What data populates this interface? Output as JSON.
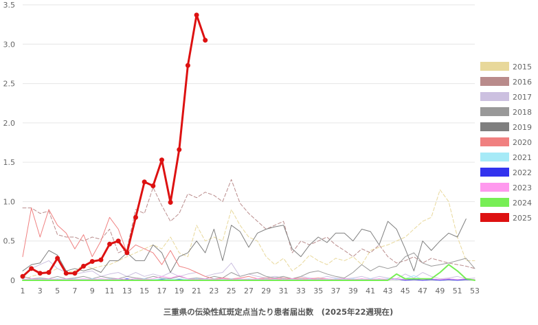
{
  "chart_data": {
    "type": "line",
    "title": "",
    "xlabel": "三重県の伝染性紅斑定点当たり患者届出数　(2025年22週現在)",
    "ylabel": "",
    "ylim": [
      0,
      3.5
    ],
    "xlim": [
      1,
      53
    ],
    "y_ticks": [
      "0",
      "0.5",
      "1.0",
      "1.5",
      "2.0",
      "2.5",
      "3.0",
      "3.5"
    ],
    "x_ticks": [
      "1",
      "3",
      "5",
      "7",
      "9",
      "11",
      "13",
      "15",
      "17",
      "19",
      "21",
      "23",
      "25",
      "27",
      "29",
      "31",
      "33",
      "35",
      "37",
      "39",
      "41",
      "43",
      "45",
      "47",
      "49",
      "51",
      "53"
    ],
    "grid": true,
    "legend_position": "right",
    "series": [
      {
        "name": "2015",
        "color": "#e8d89a",
        "dash": true,
        "width": 1,
        "values": [
          0,
          0.05,
          0.08,
          0.1,
          0.15,
          0.1,
          0.12,
          0.2,
          0.15,
          0.18,
          0.2,
          0.25,
          0.3,
          0.35,
          0.4,
          0.45,
          0.4,
          0.55,
          0.35,
          0.3,
          0.7,
          0.5,
          0.55,
          0.5,
          0.9,
          0.7,
          0.55,
          0.5,
          0.3,
          0.2,
          0.28,
          0.12,
          0.2,
          0.32,
          0.25,
          0.2,
          0.28,
          0.25,
          0.3,
          0.2,
          0.38,
          0.42,
          0.45,
          0.5,
          0.55,
          0.65,
          0.75,
          0.8,
          1.15,
          1.0,
          0.55,
          0.25,
          0.25
        ]
      },
      {
        "name": "2016",
        "color": "#b98b8b",
        "dash": true,
        "width": 1,
        "values": [
          0.92,
          0.92,
          0.85,
          0.88,
          0.58,
          0.55,
          0.55,
          0.5,
          0.55,
          0.52,
          0.65,
          0.35,
          0.4,
          0.9,
          0.85,
          1.18,
          0.95,
          0.75,
          0.85,
          1.1,
          1.05,
          1.12,
          1.08,
          1.0,
          1.28,
          0.98,
          0.85,
          0.75,
          0.65,
          0.7,
          0.75,
          0.35,
          0.5,
          0.45,
          0.5,
          0.55,
          0.45,
          0.38,
          0.3,
          0.4,
          0.35,
          0.45,
          0.3,
          0.22,
          0.25,
          0.3,
          0.22,
          0.28,
          0.25,
          0.22,
          0.2,
          0.18,
          0.15
        ]
      },
      {
        "name": "2017",
        "color": "#ccc0e0",
        "dash": false,
        "width": 1,
        "values": [
          0.05,
          0.15,
          0.2,
          0.25,
          0.15,
          0.1,
          0.08,
          0.1,
          0.12,
          0.05,
          0.08,
          0.1,
          0.05,
          0.1,
          0.05,
          0.08,
          0.05,
          0.1,
          0.05,
          0.08,
          0.1,
          0.05,
          0.08,
          0.1,
          0.22,
          0.05,
          0.08,
          0.05,
          0.03,
          0.05,
          0.03,
          0.02,
          0.05,
          0.03,
          0.02,
          0.05,
          0.03,
          0.02,
          0.03,
          0.05,
          0.02,
          0.05,
          0.03,
          0.02,
          0.08,
          0.03,
          0.1,
          0.05,
          0.02,
          0.03,
          0.05,
          0.02,
          0.03
        ]
      },
      {
        "name": "2018",
        "color": "#999999",
        "dash": false,
        "width": 1,
        "values": [
          0.05,
          0.02,
          0.03,
          0.02,
          0.05,
          0.02,
          0.03,
          0.05,
          0.02,
          0.05,
          0.03,
          0.02,
          0.05,
          0.03,
          0.02,
          0.05,
          0.03,
          0.02,
          0.05,
          0.02,
          0.03,
          0.02,
          0.05,
          0.03,
          0.1,
          0.05,
          0.08,
          0.1,
          0.05,
          0.03,
          0.05,
          0.02,
          0.05,
          0.1,
          0.12,
          0.08,
          0.05,
          0.03,
          0.1,
          0.2,
          0.12,
          0.18,
          0.15,
          0.18,
          0.3,
          0.35,
          0.22,
          0.18,
          0.2,
          0.22,
          0.25,
          0.28,
          0.15
        ]
      },
      {
        "name": "2019",
        "color": "#7f7f7f",
        "dash": false,
        "width": 1,
        "values": [
          0.12,
          0.2,
          0.22,
          0.38,
          0.32,
          0.12,
          0.15,
          0.12,
          0.15,
          0.1,
          0.25,
          0.25,
          0.35,
          0.25,
          0.25,
          0.45,
          0.35,
          0.1,
          0.3,
          0.35,
          0.5,
          0.35,
          0.65,
          0.25,
          0.7,
          0.62,
          0.42,
          0.6,
          0.65,
          0.68,
          0.7,
          0.4,
          0.3,
          0.45,
          0.55,
          0.48,
          0.6,
          0.6,
          0.5,
          0.65,
          0.62,
          0.45,
          0.75,
          0.65,
          0.4,
          0.12,
          0.5,
          0.38,
          0.5,
          0.6,
          0.55,
          0.78,
          null
        ]
      },
      {
        "name": "2020",
        "color": "#f08080",
        "dash": false,
        "width": 1,
        "values": [
          0.3,
          0.92,
          0.55,
          0.9,
          0.7,
          0.6,
          0.4,
          0.58,
          0.3,
          0.5,
          0.8,
          0.65,
          0.35,
          0.45,
          0.4,
          0.35,
          0.2,
          0.38,
          0.18,
          0.15,
          0.1,
          0.05,
          0.02,
          0.03,
          0.02,
          0.03,
          0.05,
          0.02,
          0.03,
          0.02,
          0.03,
          0.02,
          0.03,
          0.02,
          0.03,
          0.02,
          0.01,
          0.02,
          0.01,
          0.02,
          0.01,
          0.02,
          0.01,
          0.02,
          0.01,
          0.02,
          0.01,
          0.02,
          0.01,
          0.02,
          0.01,
          0.01,
          0.01
        ]
      },
      {
        "name": "2021",
        "color": "#a6eaf7",
        "dash": false,
        "width": 1,
        "values": [
          0.02,
          0.01,
          0.02,
          0.01,
          0.02,
          0.01,
          0.02,
          0.01,
          0.02,
          0.01,
          0.02,
          0.01,
          0.02,
          0.01,
          0.02,
          0.01,
          0.02,
          0.01,
          0.02,
          0.01,
          0.02,
          0.01,
          0.02,
          0.01,
          0.02,
          0.01,
          0.02,
          0.01,
          0.02,
          0.01,
          0.02,
          0.01,
          0.02,
          0.01,
          0.02,
          0.01,
          0.02,
          0.01,
          0.02,
          0.01,
          0.02,
          0.01,
          0.02,
          0.01,
          0.02,
          0.06,
          0.01,
          0.02,
          0.01,
          0.02,
          0.01,
          0.02,
          0.01
        ]
      },
      {
        "name": "2022",
        "color": "#3333ee",
        "dash": false,
        "width": 1,
        "values": [
          0.01,
          0.0,
          0.01,
          0.0,
          0.01,
          0.0,
          0.01,
          0.0,
          0.01,
          0.0,
          0.01,
          0.0,
          0.02,
          0.0,
          0.01,
          0.0,
          0.01,
          0.0,
          0.01,
          0.0,
          0.01,
          0.0,
          0.01,
          0.0,
          0.01,
          0.0,
          0.01,
          0.0,
          0.01,
          0.0,
          0.01,
          0.0,
          0.01,
          0.0,
          0.01,
          0.0,
          0.01,
          0.0,
          0.01,
          0.0,
          0.01,
          0.0,
          0.01,
          0.02,
          0.0,
          0.01,
          0.0,
          0.01,
          0.0,
          0.01,
          0.0,
          0.01,
          0.0
        ]
      },
      {
        "name": "2023",
        "color": "#ff99ee",
        "dash": false,
        "width": 1,
        "values": [
          0.01,
          0.02,
          0.01,
          0.02,
          0.01,
          0.02,
          0.01,
          0.02,
          0.01,
          0.02,
          0.01,
          0.02,
          0.01,
          0.02,
          0.01,
          0.02,
          0.05,
          0.03,
          0.06,
          0.02,
          0.01,
          0.02,
          0.01,
          0.02,
          0.01,
          0.02,
          0.01,
          0.02,
          0.01,
          0.02,
          0.01,
          0.02,
          0.01,
          0.02,
          0.01,
          0.02,
          0.01,
          0.02,
          0.01,
          0.02,
          0.01,
          0.02,
          0.01,
          0.02,
          0.01,
          0.02,
          0.01,
          0.02,
          0.01,
          0.02,
          0.01,
          0.02,
          0.01
        ]
      },
      {
        "name": "2024",
        "color": "#77ee55",
        "dash": false,
        "width": 2,
        "values": [
          0.0,
          0.0,
          0.0,
          0.0,
          0.0,
          0.0,
          0.0,
          0.0,
          0.0,
          0.0,
          0.0,
          0.0,
          0.0,
          0.0,
          0.0,
          0.0,
          0.0,
          0.0,
          0.0,
          0.0,
          0.0,
          0.0,
          0.0,
          0.0,
          0.0,
          0.0,
          0.0,
          0.0,
          0.0,
          0.0,
          0.0,
          0.0,
          0.0,
          0.0,
          0.0,
          0.0,
          0.0,
          0.0,
          0.0,
          0.0,
          0.0,
          0.0,
          0.0,
          0.08,
          0.02,
          0.02,
          0.02,
          0.02,
          0.1,
          0.2,
          0.12,
          0.02,
          0.0
        ]
      },
      {
        "name": "2025",
        "color": "#dd1111",
        "dash": false,
        "width": 3,
        "markers": true,
        "values": [
          0.05,
          0.15,
          0.09,
          0.1,
          0.28,
          0.09,
          0.09,
          0.18,
          0.24,
          0.26,
          0.46,
          0.5,
          0.35,
          0.8,
          1.25,
          1.2,
          1.53,
          0.99,
          1.66,
          2.73,
          3.37,
          3.05
        ]
      }
    ]
  }
}
